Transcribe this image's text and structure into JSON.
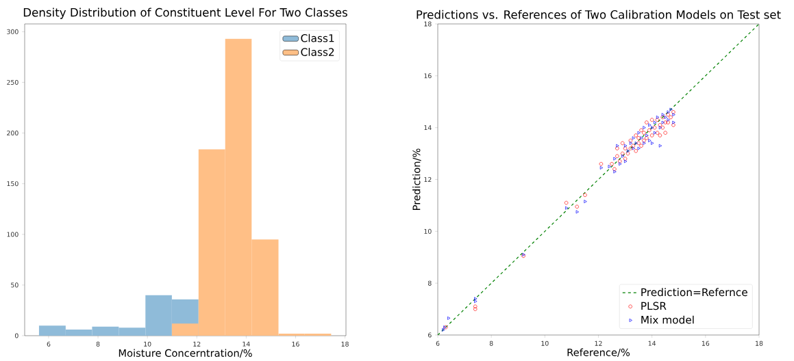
{
  "chart_data": [
    {
      "type": "histogram",
      "title": "Density Distribution of Constituent Level For Two Classes",
      "xlabel": "Moisture Concerntration/%",
      "series": [
        {
          "name": "Class1",
          "color": "#8fbbd9",
          "values": [
            10,
            6,
            9,
            8,
            40,
            36,
            null,
            null,
            null,
            null,
            null
          ]
        },
        {
          "name": "Class2",
          "color": "#ffbf86",
          "values": [
            null,
            null,
            null,
            null,
            null,
            12,
            184,
            293,
            95,
            2,
            2
          ]
        }
      ],
      "bins": [
        5.61,
        6.69,
        7.76,
        8.84,
        9.92,
        10.99,
        12.07,
        13.15,
        14.22,
        15.31,
        16.37,
        17.44
      ],
      "xlim": [
        5.03,
        18.04
      ],
      "ylim": [
        0,
        307.65
      ],
      "xticks": [
        6,
        8,
        10,
        12,
        14,
        16,
        18
      ],
      "yticks": [
        0,
        50,
        100,
        150,
        200,
        250,
        300
      ],
      "legend": "top right",
      "grid": false
    },
    {
      "type": "scatter",
      "title": "Predictions vs. References of Two Calibration Models on Test set",
      "xlabel": "Reference/%",
      "ylabel": "Prediction/%",
      "series": [
        {
          "name": "Prediction=Refernce",
          "type": "line",
          "color": "#008000",
          "line_style": "dashed",
          "marker": "none",
          "x": [
            6,
            18
          ],
          "values": [
            6,
            18
          ]
        },
        {
          "name": "PLSR",
          "type": "scatter",
          "color": "#ff0000",
          "marker": "circle",
          "x": [
            6.3,
            7.4,
            7.4,
            9.2,
            10.8,
            11.2,
            11.5,
            12.1,
            12.5,
            12.6,
            12.7,
            12.7,
            12.8,
            12.9,
            12.9,
            13.0,
            13.0,
            13.1,
            13.2,
            13.2,
            13.3,
            13.4,
            13.4,
            13.5,
            13.5,
            13.6,
            13.6,
            13.7,
            13.7,
            13.8,
            13.8,
            13.9,
            14.0,
            14.0,
            14.1,
            14.2,
            14.2,
            14.3,
            14.3,
            14.4,
            14.4,
            14.5,
            14.6,
            14.6,
            14.7,
            14.8,
            14.8,
            14.5
          ],
          "values": [
            6.3,
            7.0,
            7.1,
            9.05,
            11.1,
            10.95,
            11.4,
            12.6,
            12.6,
            12.4,
            12.9,
            13.2,
            12.7,
            13.0,
            13.4,
            12.8,
            13.2,
            13.0,
            13.5,
            13.2,
            13.3,
            13.1,
            13.7,
            13.4,
            13.6,
            13.3,
            13.9,
            13.5,
            13.8,
            14.2,
            13.6,
            13.9,
            14.3,
            13.7,
            14.0,
            14.3,
            13.8,
            14.1,
            13.7,
            14.4,
            14.0,
            14.2,
            14.5,
            14.2,
            14.4,
            14.1,
            14.6,
            13.8
          ]
        },
        {
          "name": "Mix model",
          "type": "scatter",
          "color": "#0000ff",
          "marker": "triangle",
          "x": [
            6.2,
            6.25,
            6.4,
            7.4,
            7.4,
            9.2,
            10.8,
            11.2,
            11.5,
            12.1,
            12.4,
            12.6,
            12.6,
            12.7,
            12.8,
            12.9,
            13.0,
            13.0,
            13.1,
            13.2,
            13.3,
            13.3,
            13.4,
            13.5,
            13.5,
            13.6,
            13.7,
            13.7,
            13.8,
            13.9,
            13.9,
            14.0,
            14.1,
            14.1,
            14.2,
            14.3,
            14.3,
            14.4,
            14.4,
            14.5,
            14.6,
            14.6,
            14.7,
            14.8,
            14.8,
            14.0
          ],
          "values": [
            6.2,
            6.3,
            6.65,
            7.3,
            7.4,
            9.1,
            10.9,
            10.75,
            11.15,
            12.45,
            12.5,
            12.3,
            12.8,
            13.3,
            12.6,
            12.9,
            13.3,
            12.7,
            13.1,
            13.4,
            13.2,
            13.6,
            13.4,
            13.8,
            13.2,
            13.6,
            13.4,
            14.0,
            13.7,
            14.1,
            13.5,
            14.0,
            14.2,
            13.8,
            14.4,
            14.0,
            13.3,
            14.5,
            14.2,
            14.4,
            14.6,
            14.3,
            14.7,
            14.5,
            14.2,
            13.4
          ]
        }
      ],
      "xlim": [
        6,
        18
      ],
      "ylim": [
        6,
        18
      ],
      "xticks": [
        6,
        8,
        10,
        12,
        14,
        16,
        18
      ],
      "yticks": [
        6,
        8,
        10,
        12,
        14,
        16,
        18
      ],
      "legend": "bottom right",
      "grid": false
    }
  ]
}
